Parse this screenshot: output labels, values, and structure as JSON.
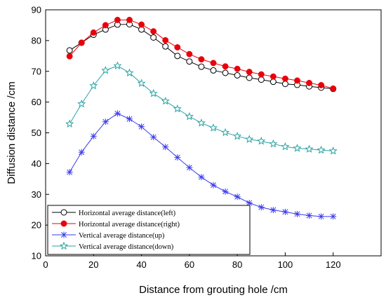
{
  "chart_data": {
    "type": "line",
    "xlabel": "Distance from grouting hole /cm",
    "ylabel": "Diffusion distance /cm",
    "xlim": [
      0,
      140
    ],
    "ylim": [
      10,
      90
    ],
    "xticks": [
      0,
      20,
      40,
      60,
      80,
      100,
      120
    ],
    "yticks": [
      10,
      20,
      30,
      40,
      50,
      60,
      70,
      80,
      90
    ],
    "grid": false,
    "legend_position": "bottom-left",
    "x": [
      10,
      15,
      20,
      25,
      30,
      35,
      40,
      45,
      50,
      55,
      60,
      65,
      70,
      75,
      80,
      85,
      90,
      95,
      100,
      105,
      110,
      115,
      120
    ],
    "series": [
      {
        "name": "Horizontal average distance(left)",
        "color": "#000000",
        "marker": "open-circle",
        "values": [
          76.8,
          79.3,
          81.9,
          83.6,
          85.2,
          85.3,
          83.6,
          81.0,
          78.1,
          75.0,
          73.2,
          71.5,
          70.3,
          69.5,
          68.7,
          67.9,
          67.3,
          66.6,
          65.9,
          65.6,
          65.1,
          64.7,
          64.3
        ]
      },
      {
        "name": "Horizontal average distance(right)",
        "color": "#e8000b",
        "marker": "filled-circle",
        "values": [
          74.9,
          79.3,
          82.6,
          85.0,
          86.7,
          86.7,
          85.2,
          83.0,
          80.1,
          77.8,
          75.6,
          73.9,
          72.7,
          71.6,
          70.8,
          69.8,
          69.0,
          68.3,
          67.6,
          67.0,
          66.2,
          65.5,
          64.4
        ]
      },
      {
        "name": "Vertical average distance(up)",
        "color": "#3a3af0",
        "marker": "asterisk",
        "values": [
          37.2,
          43.7,
          48.9,
          53.6,
          56.3,
          54.5,
          52.0,
          48.6,
          45.4,
          42.0,
          38.7,
          35.6,
          33.0,
          30.9,
          29.2,
          27.2,
          25.8,
          24.9,
          24.3,
          23.6,
          23.1,
          22.8,
          22.8
        ]
      },
      {
        "name": "Vertical average distance(down)",
        "color": "#2aa3a3",
        "marker": "open-star",
        "values": [
          52.9,
          59.4,
          65.3,
          70.3,
          71.8,
          69.5,
          66.1,
          62.8,
          60.3,
          57.8,
          55.3,
          53.2,
          51.6,
          50.1,
          48.9,
          47.9,
          47.3,
          46.4,
          45.5,
          45.0,
          44.7,
          44.4,
          44.1
        ]
      }
    ]
  }
}
